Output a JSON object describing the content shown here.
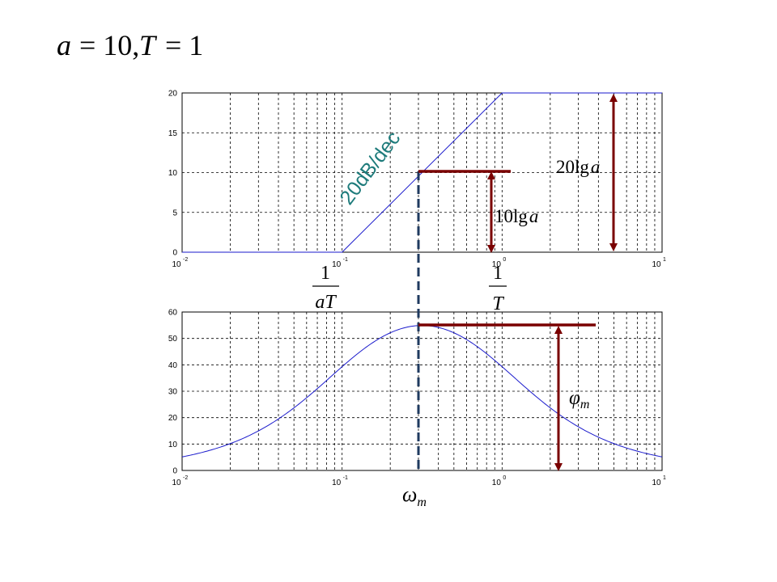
{
  "header": {
    "formula_a": "a",
    "formula_eq1": "= 10,",
    "formula_T": "T",
    "formula_eq2": "= 1"
  },
  "annotations": {
    "slope_label": "20dB/dec",
    "label_20lg_coef": "20lg",
    "label_20lg_var": "a",
    "label_10lg_coef": "10lg",
    "label_10lg_var": "a",
    "frac1_num": "1",
    "frac1_den": "aT",
    "frac2_num": "1",
    "frac2_den": "T",
    "phi_symbol": "φ",
    "phi_sub": "m",
    "omega_symbol": "ω",
    "omega_sub": "m"
  },
  "colors": {
    "curve": "#1a1acc",
    "marker": "#7a0000",
    "slope_text": "#1e7b7b",
    "dashed_vertical": "#1f3a5f",
    "grid": "#000000"
  },
  "chart_data": [
    {
      "type": "line",
      "title": "",
      "xlabel": "",
      "ylabel": "",
      "xscale": "log",
      "xlim": [
        0.01,
        10
      ],
      "ylim": [
        0,
        20
      ],
      "yticks": [
        0,
        5,
        10,
        15,
        20
      ],
      "xtick_base": "10",
      "xtick_exponents": [
        "-2",
        "-1",
        "0",
        "1"
      ],
      "grid": true,
      "series": [
        {
          "x": [
            0.01,
            0.1,
            1,
            10
          ],
          "y": [
            0,
            0,
            20,
            20
          ]
        }
      ]
    },
    {
      "type": "line",
      "title": "",
      "xlabel": "",
      "ylabel": "",
      "xscale": "log",
      "xlim": [
        0.01,
        10
      ],
      "ylim": [
        0,
        60
      ],
      "yticks": [
        0,
        10,
        20,
        30,
        40,
        50,
        60
      ],
      "xtick_base": "10",
      "xtick_exponents": [
        "-2",
        "-1",
        "0",
        "1"
      ],
      "grid": true,
      "series": [
        {
          "x": [
            0.01,
            0.02,
            0.03,
            0.05,
            0.1,
            0.2,
            0.316,
            0.5,
            1,
            2,
            3,
            5,
            10
          ],
          "y": [
            5.1,
            10.1,
            14.7,
            22.9,
            39.3,
            54.9,
            54.9,
            56.9,
            39.3,
            22.9,
            14.7,
            10.1,
            5.1
          ]
        }
      ]
    }
  ]
}
